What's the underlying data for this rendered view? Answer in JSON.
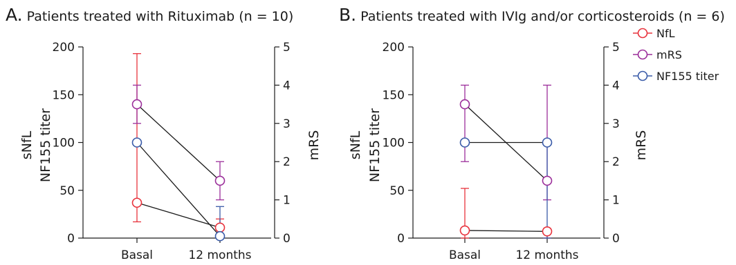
{
  "colors": {
    "NfL": "#e8323c",
    "mRS": "#9b2e9a",
    "NF155 titer": "#3a5ba8",
    "connector": "#1a1a1a"
  },
  "legend": {
    "items": [
      "NfL",
      "mRS",
      "NF155 titer"
    ]
  },
  "chart_data": [
    {
      "type": "line",
      "title_letter": "A.",
      "title": "Patients treated with Rituximab (n = 10)",
      "categories": [
        "Basal",
        "12 months"
      ],
      "ylabel_left": [
        "sNfL",
        "NF155 titer"
      ],
      "ylabel_right": "mRS",
      "ylim_left": [
        0,
        200
      ],
      "ylim_right": [
        0,
        5
      ],
      "yticks_left": [
        "0",
        "50",
        "100",
        "150",
        "200"
      ],
      "yticks_right": [
        "0",
        "1",
        "2",
        "3",
        "4",
        "5"
      ],
      "series": [
        {
          "name": "NfL",
          "axis": "left",
          "values": [
            37,
            11
          ],
          "err_low": [
            17,
            2
          ],
          "err_high": [
            193,
            20
          ]
        },
        {
          "name": "mRS",
          "axis": "right",
          "values": [
            3.5,
            1.5
          ],
          "err_low": [
            3.0,
            1.0
          ],
          "err_high": [
            4.0,
            2.0
          ]
        },
        {
          "name": "NF155 titer",
          "axis": "left",
          "values": [
            100,
            2
          ],
          "err_low": [
            100,
            0
          ],
          "err_high": [
            100,
            33
          ]
        }
      ]
    },
    {
      "type": "line",
      "title_letter": "B.",
      "title": "Patients treated with IVIg and/or corticosteroids (n = 6)",
      "categories": [
        "Basal",
        "12 months"
      ],
      "ylabel_left": [
        "sNfL",
        "NF155 titer"
      ],
      "ylabel_right": "mRS",
      "ylim_left": [
        0,
        200
      ],
      "ylim_right": [
        0,
        5
      ],
      "yticks_left": [
        "0",
        "50",
        "100",
        "150",
        "200"
      ],
      "yticks_right": [
        "0",
        "1",
        "2",
        "3",
        "4",
        "5"
      ],
      "series": [
        {
          "name": "NfL",
          "axis": "left",
          "values": [
            8,
            7
          ],
          "err_low": [
            0,
            0
          ],
          "err_high": [
            52,
            10
          ]
        },
        {
          "name": "mRS",
          "axis": "right",
          "values": [
            3.5,
            1.5
          ],
          "err_low": [
            2.0,
            1.0
          ],
          "err_high": [
            4.0,
            4.0
          ]
        },
        {
          "name": "NF155 titer",
          "axis": "left",
          "values": [
            100,
            100
          ],
          "err_low": [
            100,
            0
          ],
          "err_high": [
            100,
            100
          ]
        }
      ]
    }
  ]
}
